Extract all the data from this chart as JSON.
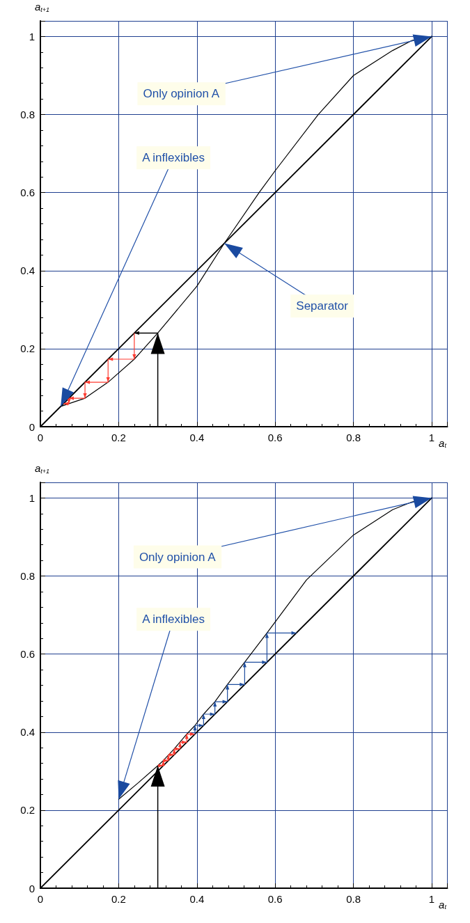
{
  "chart_data": [
    {
      "type": "line",
      "xlabel": "a$_{t}$",
      "ylabel": "a$_{t+1}$",
      "xlim": [
        0,
        1.04
      ],
      "ylim": [
        0,
        1.04
      ],
      "xticks": [
        0,
        0.2,
        0.4,
        0.6,
        0.8,
        1
      ],
      "yticks": [
        0,
        0.2,
        0.4,
        0.6,
        0.8,
        1
      ],
      "grid": true,
      "marker": "none",
      "line_style": "solid",
      "annotations": [
        {
          "text": "Only opinion A",
          "x": 1,
          "y": 1
        },
        {
          "text": "A inflexibles",
          "x": 0.052,
          "y": 0.052
        },
        {
          "text": "Separator",
          "x": 0.47,
          "y": 0.47
        }
      ],
      "series": [
        {
          "color": "#000000",
          "x": [
            0,
            1
          ],
          "values": [
            0,
            1
          ]
        },
        {
          "color": "#000000",
          "x": [
            0.052,
            0.073,
            0.114,
            0.173,
            0.24,
            0.3,
            0.4,
            0.47,
            0.559,
            0.6,
            0.71,
            0.8,
            0.9,
            0.95,
            1
          ],
          "values": [
            0.052,
            0.059,
            0.073,
            0.114,
            0.173,
            0.24,
            0.36,
            0.47,
            0.6,
            0.656,
            0.8,
            0.9,
            0.964,
            0.99,
            1
          ]
        },
        {
          "color": "#000000",
          "x": [
            0.3,
            0.3,
            0.24
          ],
          "values": [
            0,
            0.24,
            0.24
          ]
        },
        {
          "color": "#ff3b30",
          "x": [
            0.24,
            0.24,
            0.173,
            0.173,
            0.114,
            0.114,
            0.073,
            0.073,
            0.059
          ],
          "values": [
            0.24,
            0.173,
            0.173,
            0.114,
            0.114,
            0.073,
            0.073,
            0.059,
            0.059
          ]
        }
      ]
    },
    {
      "type": "line",
      "xlabel": "a$_{t}$",
      "ylabel": "a$_{t+1}$",
      "xlim": [
        0,
        1.04
      ],
      "ylim": [
        0,
        1.04
      ],
      "xticks": [
        0,
        0.2,
        0.4,
        0.6,
        0.8,
        1
      ],
      "yticks": [
        0,
        0.2,
        0.4,
        0.6,
        0.8,
        1
      ],
      "grid": true,
      "marker": "none",
      "line_style": "solid",
      "annotations": [
        {
          "text": "Only opinion A",
          "x": 1,
          "y": 1
        },
        {
          "text": "A inflexibles",
          "x": 0.2,
          "y": 0.228
        }
      ],
      "series": [
        {
          "color": "#000000",
          "x": [
            0,
            1
          ],
          "values": [
            0,
            1
          ]
        },
        {
          "color": "#000000",
          "x": [
            0.2,
            0.25,
            0.3,
            0.314,
            0.342,
            0.374,
            0.395,
            0.417,
            0.446,
            0.478,
            0.522,
            0.579,
            0.68,
            0.8,
            0.9,
            0.95,
            1
          ],
          "values": [
            0.228,
            0.27,
            0.314,
            0.327,
            0.357,
            0.395,
            0.417,
            0.446,
            0.478,
            0.522,
            0.579,
            0.654,
            0.79,
            0.905,
            0.97,
            0.99,
            1
          ]
        },
        {
          "color": "#000000",
          "x": [
            0.3,
            0.3
          ],
          "values": [
            0,
            0.314
          ]
        },
        {
          "color": "#ff3b30",
          "x": [
            0.3,
            0.314,
            0.314,
            0.327,
            0.327,
            0.342,
            0.342,
            0.357,
            0.357,
            0.374,
            0.374,
            0.395
          ],
          "values": [
            0.314,
            0.314,
            0.327,
            0.327,
            0.342,
            0.342,
            0.357,
            0.357,
            0.374,
            0.374,
            0.395,
            0.395
          ]
        },
        {
          "color": "#1f4e9e",
          "x": [
            0.395,
            0.395,
            0.417,
            0.417,
            0.446,
            0.446,
            0.478,
            0.478,
            0.522,
            0.522,
            0.579,
            0.579,
            0.654
          ],
          "values": [
            0.395,
            0.417,
            0.417,
            0.446,
            0.446,
            0.478,
            0.478,
            0.522,
            0.522,
            0.579,
            0.579,
            0.654,
            0.654
          ]
        }
      ]
    }
  ]
}
